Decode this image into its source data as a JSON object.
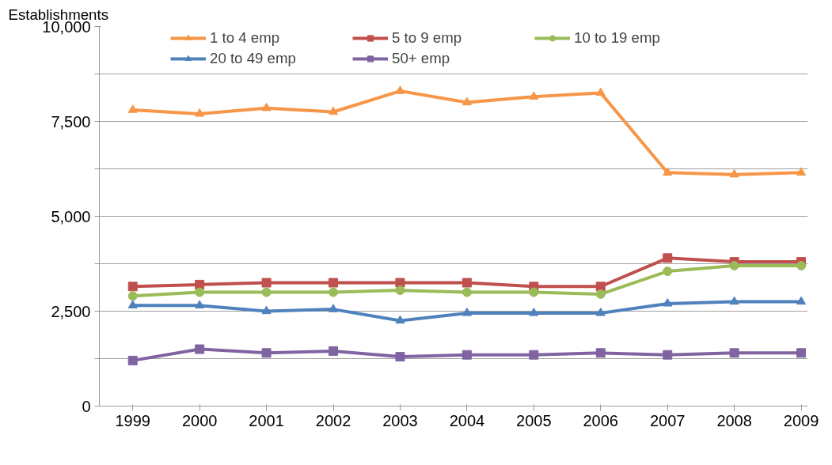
{
  "chart_data": {
    "type": "line",
    "ylabel": "Establishments",
    "x": [
      1999,
      2000,
      2001,
      2002,
      2003,
      2004,
      2005,
      2006,
      2007,
      2008,
      2009
    ],
    "series": [
      {
        "name": "1 to 4 emp",
        "color": "#f79646",
        "marker": "triangle",
        "values": [
          7800,
          7700,
          7850,
          7750,
          8300,
          8000,
          8150,
          8250,
          6150,
          6100,
          6150
        ]
      },
      {
        "name": "5 to 9 emp",
        "color": "#c0504d",
        "marker": "square",
        "values": [
          3150,
          3200,
          3250,
          3250,
          3250,
          3250,
          3150,
          3150,
          3900,
          3800,
          3800
        ]
      },
      {
        "name": "10 to 19 emp",
        "color": "#9bbb59",
        "marker": "circle",
        "values": [
          2900,
          3000,
          3000,
          3000,
          3050,
          3000,
          3000,
          2950,
          3550,
          3700,
          3700
        ]
      },
      {
        "name": "20 to 49 emp",
        "color": "#4f81bd",
        "marker": "triangle",
        "values": [
          2650,
          2650,
          2500,
          2550,
          2250,
          2450,
          2450,
          2450,
          2700,
          2750,
          2750
        ]
      },
      {
        "name": "50+ emp",
        "color": "#8064a2",
        "marker": "square",
        "values": [
          1200,
          1500,
          1400,
          1450,
          1300,
          1350,
          1350,
          1400,
          1350,
          1400,
          1400
        ]
      }
    ],
    "xlim": [
      1998.5,
      2009.1
    ],
    "xticks": [
      1999,
      2000,
      2001,
      2002,
      2003,
      2004,
      2005,
      2006,
      2007,
      2008,
      2009
    ],
    "ylim": [
      0,
      10000
    ],
    "yticks": [
      {
        "value": 0,
        "label": "0"
      },
      {
        "value": 1250,
        "label": null
      },
      {
        "value": 2500,
        "label": "2,500"
      },
      {
        "value": 3750,
        "label": null
      },
      {
        "value": 5000,
        "label": "5,000"
      },
      {
        "value": 6250,
        "label": null
      },
      {
        "value": 7500,
        "label": "7,500"
      },
      {
        "value": 8750,
        "label": null
      },
      {
        "value": 10000,
        "label": "10,000"
      }
    ],
    "grid": "y",
    "legend": "top",
    "line_style": "solid"
  }
}
